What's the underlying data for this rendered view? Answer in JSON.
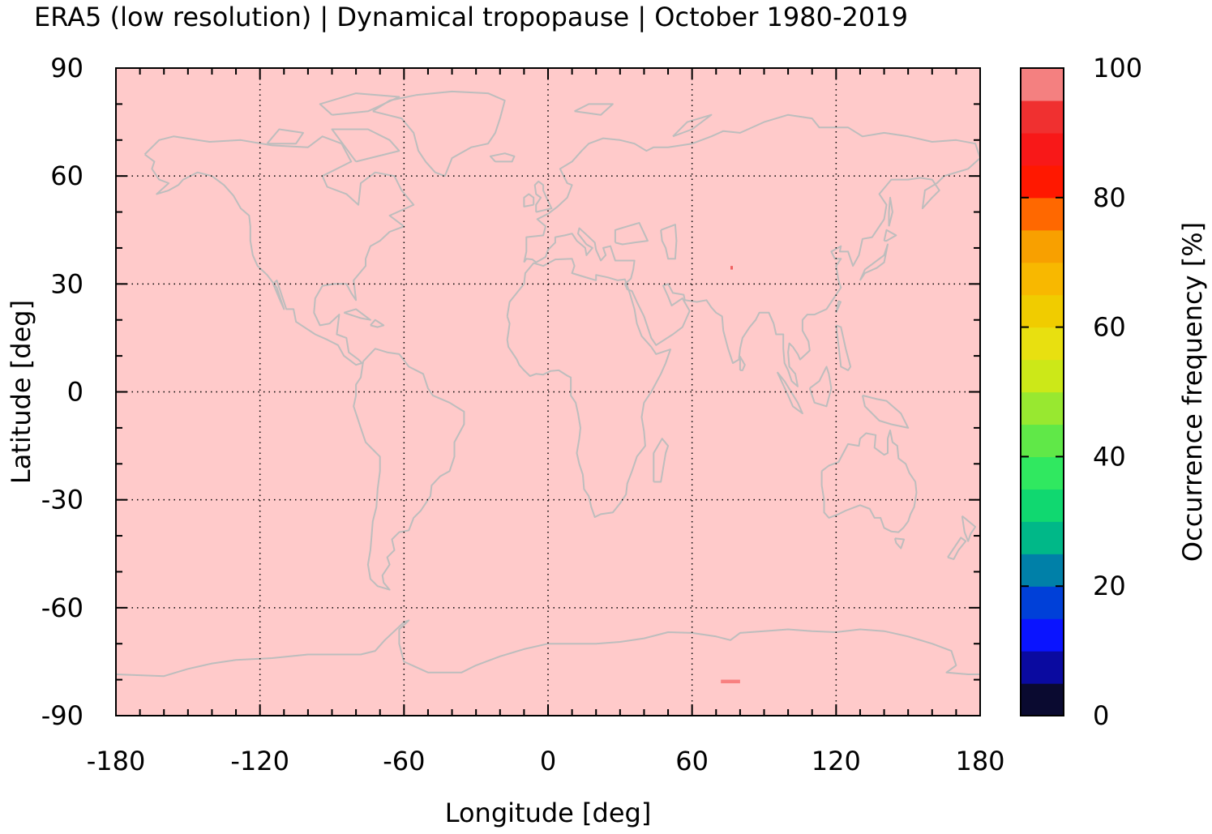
{
  "title": "ERA5 (low resolution) | Dynamical tropopause | October 1980-2019",
  "chart_data": {
    "type": "heatmap",
    "title": "ERA5 (low resolution) | Dynamical tropopause | October 1980-2019",
    "xlabel": "Longitude [deg]",
    "ylabel": "Latitude [deg]",
    "xlim": [
      -180,
      180
    ],
    "ylim": [
      -90,
      90
    ],
    "xticks": [
      "-180",
      "-120",
      "-60",
      "0",
      "60",
      "120",
      "180"
    ],
    "yticks": [
      "90",
      "60",
      "30",
      "0",
      "-30",
      "-60",
      "-90"
    ],
    "x_tick_values": [
      -180,
      -120,
      -60,
      0,
      60,
      120,
      180
    ],
    "y_tick_values": [
      90,
      60,
      30,
      0,
      -30,
      -60,
      -90
    ],
    "grid": true,
    "background_value": 100,
    "background_color": "#ffcaca",
    "coastline_color": "#bdbdbd",
    "anomalies": [
      {
        "lon_range": [
          72,
          80
        ],
        "lat_range": [
          -81,
          -80
        ],
        "value": 90,
        "color": "#f88080"
      },
      {
        "lon_range": [
          76,
          77
        ],
        "lat_range": [
          34,
          35
        ],
        "value": 90,
        "color": "#f06060"
      }
    ],
    "colorbar": {
      "label": "Occurrence frequency [%]",
      "range": [
        0,
        100
      ],
      "ticks": [
        "100",
        "80",
        "60",
        "40",
        "20",
        "0"
      ],
      "tick_values": [
        100,
        80,
        60,
        40,
        20,
        0
      ],
      "levels": [
        0,
        5,
        10,
        15,
        20,
        25,
        30,
        35,
        40,
        45,
        50,
        55,
        60,
        65,
        70,
        75,
        80,
        85,
        90,
        95,
        100
      ],
      "colors": [
        "#0a0a30",
        "#0a0aa0",
        "#0a14ff",
        "#0040d8",
        "#0080a8",
        "#00b888",
        "#10d870",
        "#30e860",
        "#60e848",
        "#98e830",
        "#cce818",
        "#e8e010",
        "#f0cc00",
        "#f8b800",
        "#f8a000",
        "#ff6800",
        "#ff1800",
        "#f81818",
        "#f03030",
        "#f48080",
        "#ffcaca"
      ]
    }
  }
}
